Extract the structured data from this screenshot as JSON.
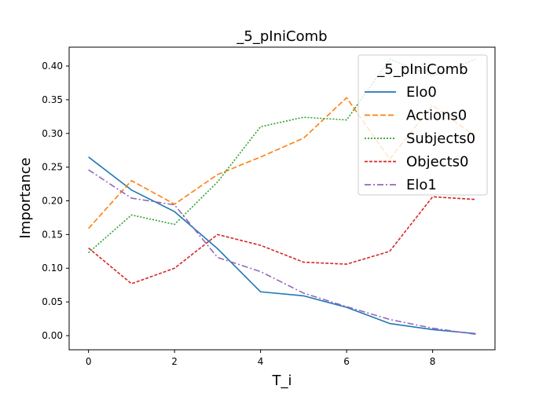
{
  "chart_data": {
    "type": "line",
    "title": "_5_pIniComb",
    "xlabel": "T_i",
    "ylabel": "Importance",
    "xlim": [
      -0.45,
      9.45
    ],
    "ylim": [
      -0.021,
      0.428
    ],
    "xticks": [
      0,
      2,
      4,
      6,
      8
    ],
    "yticks": [
      0.0,
      0.05,
      0.1,
      0.15,
      0.2,
      0.25,
      0.3,
      0.35,
      0.4
    ],
    "grid": false,
    "legend": {
      "title": "_5_pIniComb",
      "placement": "top-right"
    },
    "x": [
      0,
      1,
      2,
      3,
      4,
      5,
      6,
      7,
      8,
      9
    ],
    "series": [
      {
        "name": "Elo0",
        "color": "#1f77b4",
        "dash": "solid",
        "values": [
          0.265,
          0.216,
          0.184,
          0.129,
          0.065,
          0.059,
          0.042,
          0.018,
          0.009,
          0.003
        ]
      },
      {
        "name": "Actions0",
        "color": "#ff7f0e",
        "dash": "dashed",
        "values": [
          0.159,
          0.23,
          0.195,
          0.239,
          0.265,
          0.293,
          0.353,
          0.262,
          0.342,
          0.295
        ]
      },
      {
        "name": "Subjects0",
        "color": "#2ca02c",
        "dash": "dotted",
        "values": [
          0.123,
          0.179,
          0.165,
          0.228,
          0.31,
          0.324,
          0.32,
          0.41,
          0.385,
          0.41
        ]
      },
      {
        "name": "Objects0",
        "color": "#d62728",
        "dash": "densely-dashed",
        "values": [
          0.13,
          0.077,
          0.1,
          0.15,
          0.134,
          0.109,
          0.106,
          0.125,
          0.206,
          0.202
        ]
      },
      {
        "name": "Elo1",
        "color": "#9467bd",
        "dash": "dashdot",
        "values": [
          0.246,
          0.204,
          0.194,
          0.116,
          0.095,
          0.063,
          0.043,
          0.024,
          0.011,
          0.002
        ]
      }
    ]
  }
}
